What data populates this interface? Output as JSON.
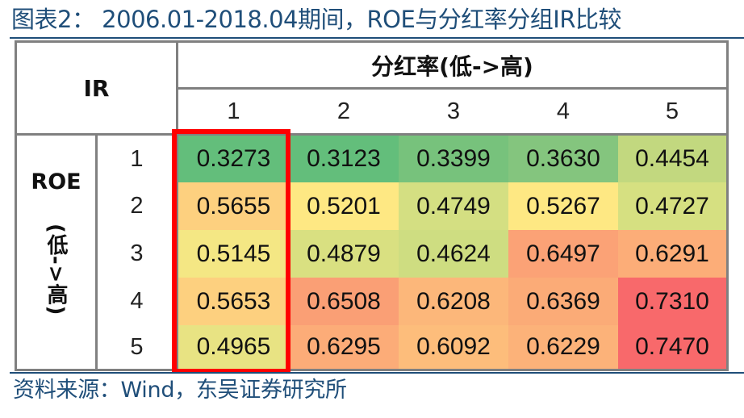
{
  "title": "图表2：  2006.01-2018.04期间，ROE与分红率分组IR比较",
  "source": "资料来源：Wind，东吴证券研究所",
  "table": {
    "corner_label": "IR",
    "col_group_label": "分红率(低->高)",
    "row_group_label": "ROE",
    "row_group_sublabel": "(低->高)",
    "col_headers": [
      "1",
      "2",
      "3",
      "4",
      "5"
    ],
    "row_headers": [
      "1",
      "2",
      "3",
      "4",
      "5"
    ],
    "rows": [
      [
        "0.3273",
        "0.3123",
        "0.3399",
        "0.3630",
        "0.4454"
      ],
      [
        "0.5655",
        "0.5201",
        "0.4749",
        "0.5267",
        "0.4727"
      ],
      [
        "0.5145",
        "0.4879",
        "0.4624",
        "0.6497",
        "0.6291"
      ],
      [
        "0.5653",
        "0.6508",
        "0.6208",
        "0.6369",
        "0.7310"
      ],
      [
        "0.4965",
        "0.6295",
        "0.6092",
        "0.6229",
        "0.7470"
      ]
    ],
    "colors": [
      [
        "#63be7b",
        "#63be7b",
        "#77c27c",
        "#84c57e",
        "#c2d87f"
      ],
      [
        "#fdd07f",
        "#fee883",
        "#d4df82",
        "#fee883",
        "#d6e081"
      ],
      [
        "#f4e784",
        "#d9e081",
        "#cedd81",
        "#fba276",
        "#fcad78"
      ],
      [
        "#fdd07f",
        "#fa9f75",
        "#fcb77a",
        "#fbab77",
        "#f8696b"
      ],
      [
        "#e8e383",
        "#fcac78",
        "#fdbd7b",
        "#fcb279",
        "#f8696b"
      ]
    ],
    "highlight": {
      "column": 1,
      "color": "#ff0000"
    }
  },
  "chart_data": {
    "type": "heatmap",
    "title": "图表2：  2006.01-2018.04期间，ROE与分红率分组IR比较",
    "xlabel": "分红率(低->高)",
    "ylabel": "ROE(低->高)",
    "value_label": "IR",
    "x": [
      "1",
      "2",
      "3",
      "4",
      "5"
    ],
    "y": [
      "1",
      "2",
      "3",
      "4",
      "5"
    ],
    "values": [
      [
        0.3273,
        0.3123,
        0.3399,
        0.363,
        0.4454
      ],
      [
        0.5655,
        0.5201,
        0.4749,
        0.5267,
        0.4727
      ],
      [
        0.5145,
        0.4879,
        0.4624,
        0.6497,
        0.6291
      ],
      [
        0.5653,
        0.6508,
        0.6208,
        0.6369,
        0.731
      ],
      [
        0.4965,
        0.6295,
        0.6092,
        0.6229,
        0.747
      ]
    ],
    "colorscale": "green (low) -> yellow -> red (high)",
    "annotations": [
      "Red rectangle highlights 分红率 group 1 column"
    ],
    "source": "资料来源：Wind，东吴证券研究所"
  }
}
